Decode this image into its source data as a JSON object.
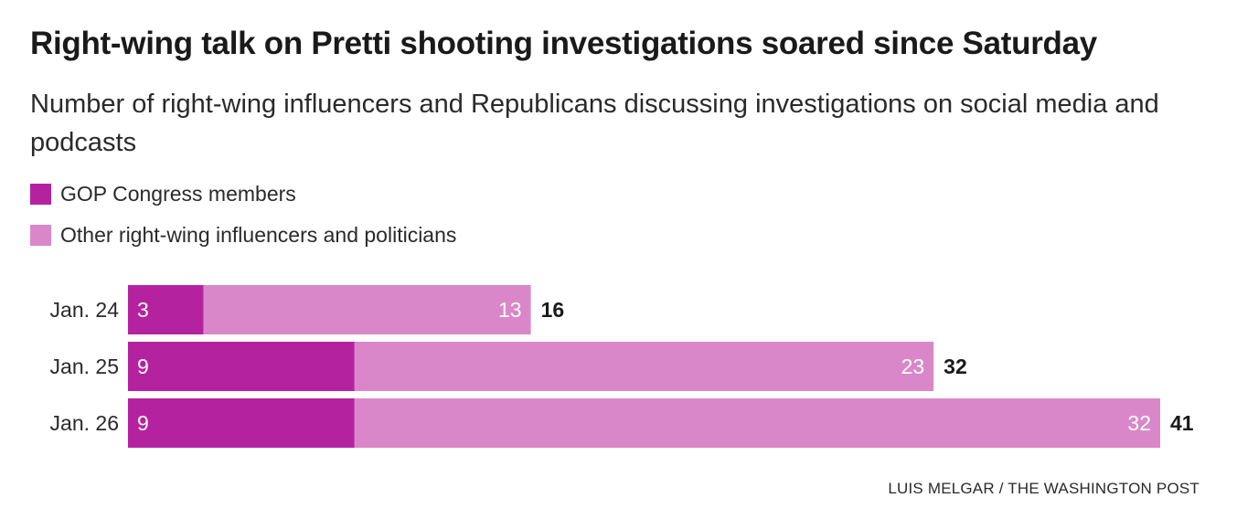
{
  "title": "Right-wing talk on Pretti shooting investigations soared since Saturday",
  "subtitle": "Number of right-wing influencers and Republicans discussing investigations on social media and podcasts",
  "credit": "LUIS MELGAR / THE WASHINGTON POST",
  "colors": {
    "gop": "#b5229f",
    "other": "#da87ca",
    "inside_label": "#ffffff",
    "total_label": "#1a1a1a",
    "category_label": "#2a2a2a"
  },
  "chart_data": {
    "type": "bar",
    "orientation": "horizontal",
    "stacked": true,
    "categories": [
      "Jan. 24",
      "Jan. 25",
      "Jan. 26"
    ],
    "series": [
      {
        "name": "GOP Congress members",
        "values": [
          3,
          9,
          9
        ]
      },
      {
        "name": "Other right-wing influencers and politicians",
        "values": [
          13,
          23,
          32
        ]
      }
    ],
    "totals": [
      "16",
      "32",
      "41"
    ],
    "xlim": [
      0,
      41
    ],
    "grid": false,
    "legend_position": "top-left"
  }
}
